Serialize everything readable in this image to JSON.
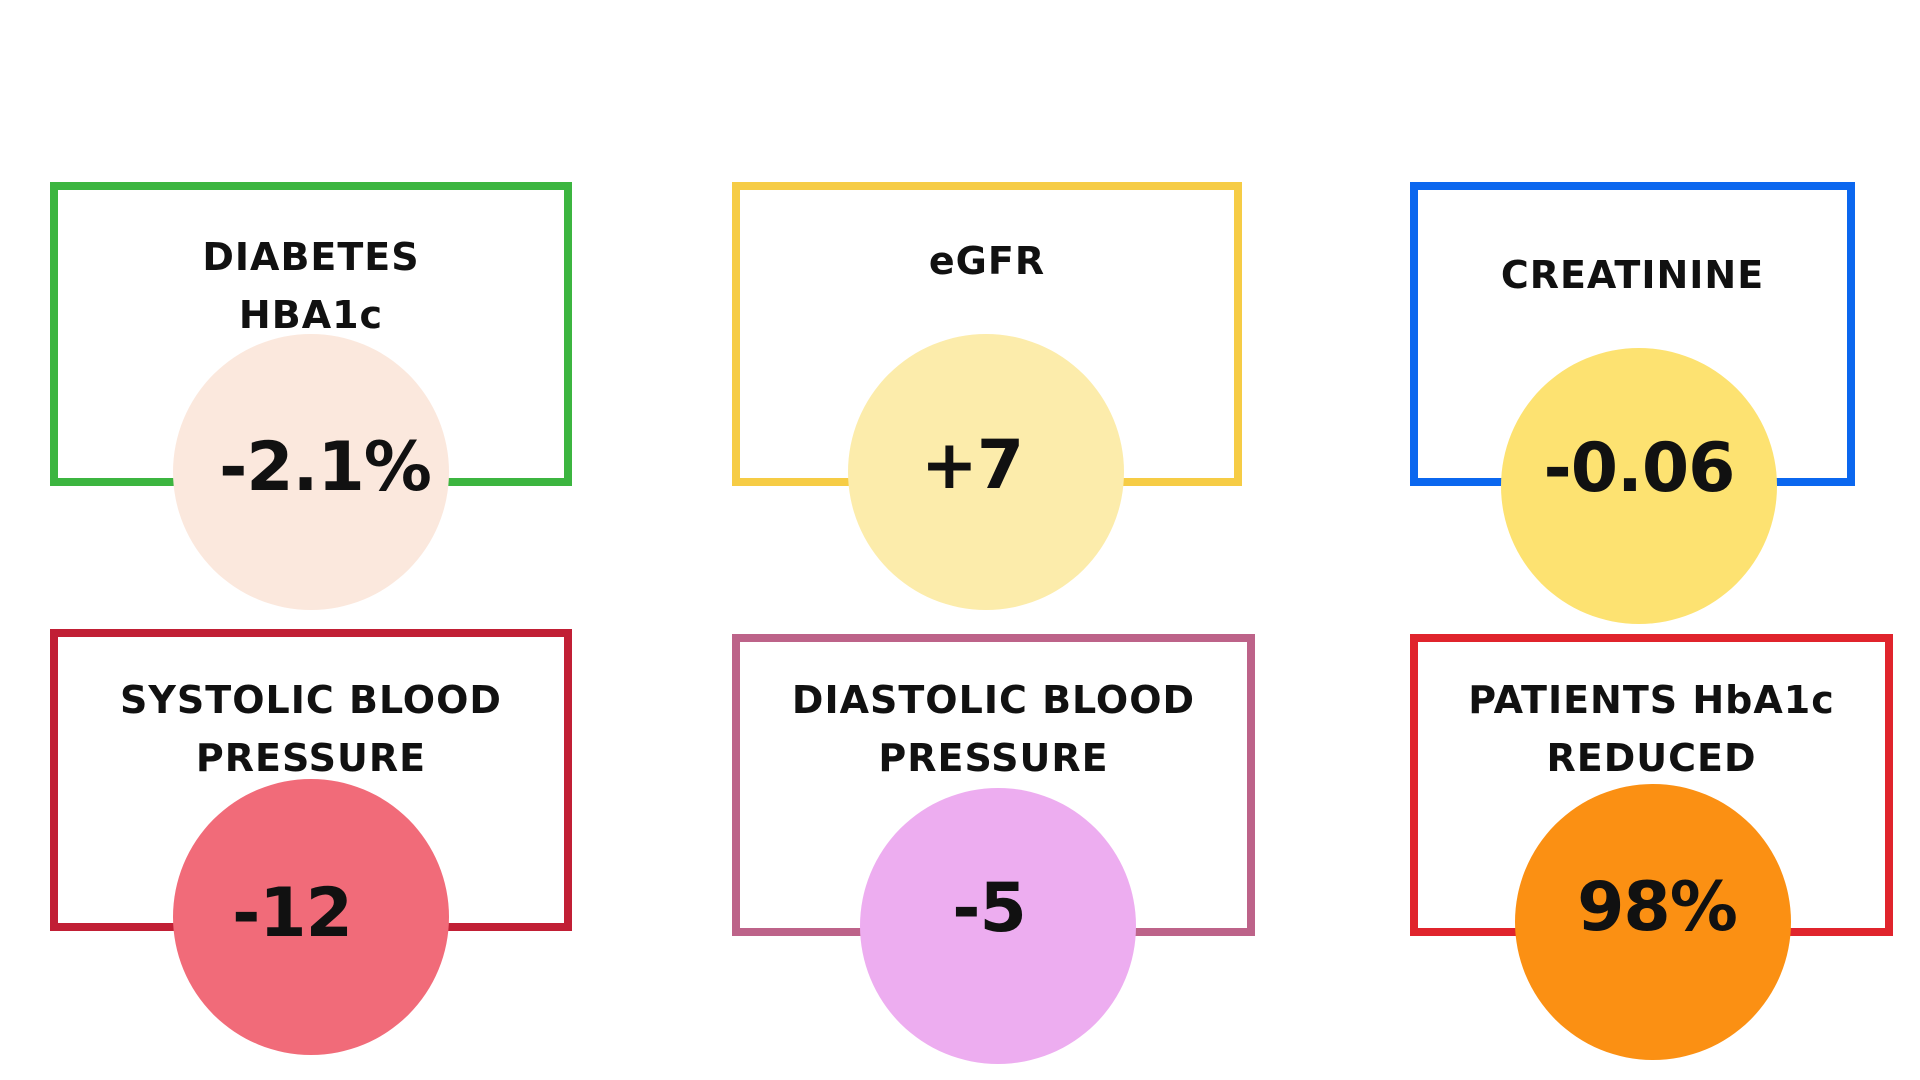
{
  "metrics": [
    {
      "label": "DIABETES\nHBA1c",
      "value": "-2.1%",
      "border_color": "#3cb540",
      "circle_color": "#fbe8dd"
    },
    {
      "label": "eGFR",
      "value": "+7",
      "border_color": "#f6cc45",
      "circle_color": "#fcecab"
    },
    {
      "label": "CREATININE",
      "value": "-0.06",
      "border_color": "#0b67ef",
      "circle_color": "#fde271"
    },
    {
      "label": "SYSTOLIC BLOOD\nPRESSURE",
      "value": "-12",
      "border_color": "#c11f35",
      "circle_color": "#f16b79"
    },
    {
      "label": "DIASTOLIC BLOOD\nPRESSURE",
      "value": "-5",
      "border_color": "#bd6389",
      "circle_color": "#edadf0"
    },
    {
      "label": "PATIENTS HbA1c\nREDUCED",
      "value": "98%",
      "border_color": "#e0242c",
      "circle_color": "#fb9013"
    }
  ]
}
